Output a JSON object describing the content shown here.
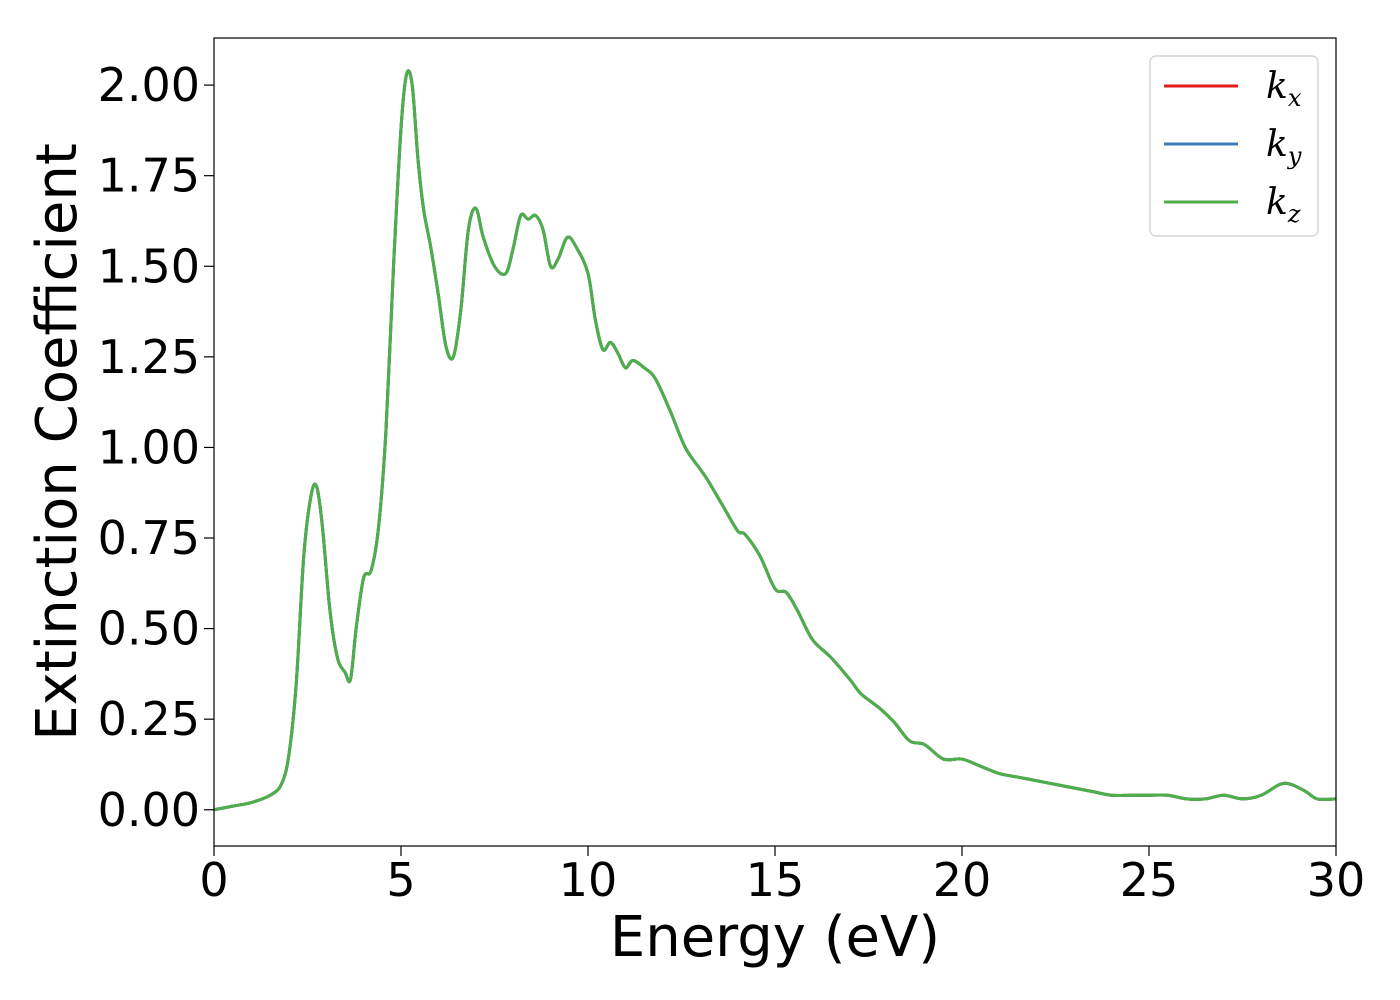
{
  "chart_data": {
    "type": "line",
    "title": "",
    "xlabel": "Energy (eV)",
    "ylabel": "Extinction Coefficient",
    "xlim": [
      0,
      30
    ],
    "ylim": [
      -0.1,
      2.13
    ],
    "xticks": [
      "0",
      "5",
      "10",
      "15",
      "20",
      "25",
      "30"
    ],
    "yticks": [
      "0.00",
      "0.25",
      "0.50",
      "0.75",
      "1.00",
      "1.25",
      "1.50",
      "1.75",
      "2.00"
    ],
    "grid": false,
    "legend": {
      "position": "top-right",
      "entries": [
        {
          "base": "k",
          "sub": "x",
          "color": "#e41a1c"
        },
        {
          "base": "k",
          "sub": "y",
          "color": "#377eb8"
        },
        {
          "base": "k",
          "sub": "z",
          "color": "#4daf4a"
        }
      ]
    },
    "x": [
      0,
      0.5,
      1.0,
      1.5,
      1.8,
      2.0,
      2.2,
      2.4,
      2.6,
      2.75,
      2.9,
      3.1,
      3.3,
      3.5,
      3.65,
      3.8,
      4.0,
      4.2,
      4.4,
      4.6,
      4.8,
      5.0,
      5.15,
      5.3,
      5.45,
      5.6,
      5.8,
      6.0,
      6.2,
      6.4,
      6.6,
      6.8,
      7.0,
      7.2,
      7.5,
      7.8,
      8.0,
      8.2,
      8.4,
      8.6,
      8.8,
      9.0,
      9.2,
      9.45,
      9.7,
      10.0,
      10.2,
      10.4,
      10.6,
      10.8,
      11.0,
      11.2,
      11.5,
      11.8,
      12.2,
      12.6,
      13.0,
      13.2,
      13.6,
      14.0,
      14.2,
      14.6,
      15.0,
      15.3,
      15.6,
      16.0,
      16.5,
      17.0,
      17.3,
      17.8,
      18.2,
      18.6,
      19.0,
      19.5,
      20.0,
      20.5,
      21.0,
      21.5,
      22.0,
      22.5,
      23.0,
      23.5,
      24.0,
      24.5,
      25.0,
      25.5,
      26.0,
      26.5,
      27.0,
      27.5,
      28.0,
      28.5,
      28.8,
      29.2,
      29.5,
      30.0
    ],
    "series": [
      {
        "values": [
          0.0,
          0.01,
          0.02,
          0.04,
          0.07,
          0.15,
          0.35,
          0.7,
          0.87,
          0.89,
          0.78,
          0.55,
          0.42,
          0.38,
          0.36,
          0.5,
          0.64,
          0.66,
          0.78,
          1.05,
          1.5,
          1.88,
          2.03,
          2.0,
          1.8,
          1.66,
          1.55,
          1.42,
          1.28,
          1.25,
          1.38,
          1.6,
          1.66,
          1.58,
          1.5,
          1.48,
          1.55,
          1.64,
          1.63,
          1.64,
          1.6,
          1.5,
          1.52,
          1.58,
          1.55,
          1.48,
          1.35,
          1.27,
          1.29,
          1.26,
          1.22,
          1.24,
          1.22,
          1.19,
          1.1,
          1.0,
          0.94,
          0.91,
          0.84,
          0.77,
          0.76,
          0.7,
          0.61,
          0.6,
          0.55,
          0.47,
          0.42,
          0.36,
          0.32,
          0.28,
          0.24,
          0.19,
          0.18,
          0.14,
          0.14,
          0.12,
          0.1,
          0.09,
          0.08,
          0.07,
          0.06,
          0.05,
          0.04,
          0.04,
          0.04,
          0.04,
          0.03,
          0.03,
          0.04,
          0.03,
          0.04,
          0.07,
          0.07,
          0.05,
          0.03,
          0.03
        ],
        "color": "#e41a1c"
      },
      {
        "values": [
          0.0,
          0.01,
          0.02,
          0.04,
          0.07,
          0.15,
          0.35,
          0.7,
          0.87,
          0.89,
          0.78,
          0.55,
          0.42,
          0.38,
          0.36,
          0.5,
          0.64,
          0.66,
          0.78,
          1.05,
          1.5,
          1.88,
          2.03,
          2.0,
          1.8,
          1.66,
          1.55,
          1.42,
          1.28,
          1.25,
          1.38,
          1.6,
          1.66,
          1.58,
          1.5,
          1.48,
          1.55,
          1.64,
          1.63,
          1.64,
          1.6,
          1.5,
          1.52,
          1.58,
          1.55,
          1.48,
          1.35,
          1.27,
          1.29,
          1.26,
          1.22,
          1.24,
          1.22,
          1.19,
          1.1,
          1.0,
          0.94,
          0.91,
          0.84,
          0.77,
          0.76,
          0.7,
          0.61,
          0.6,
          0.55,
          0.47,
          0.42,
          0.36,
          0.32,
          0.28,
          0.24,
          0.19,
          0.18,
          0.14,
          0.14,
          0.12,
          0.1,
          0.09,
          0.08,
          0.07,
          0.06,
          0.05,
          0.04,
          0.04,
          0.04,
          0.04,
          0.03,
          0.03,
          0.04,
          0.03,
          0.04,
          0.07,
          0.07,
          0.05,
          0.03,
          0.03
        ],
        "color": "#377eb8"
      },
      {
        "values": [
          0.0,
          0.01,
          0.02,
          0.04,
          0.07,
          0.15,
          0.35,
          0.7,
          0.87,
          0.89,
          0.78,
          0.55,
          0.42,
          0.38,
          0.36,
          0.5,
          0.64,
          0.66,
          0.78,
          1.05,
          1.5,
          1.88,
          2.03,
          2.0,
          1.8,
          1.66,
          1.55,
          1.42,
          1.28,
          1.25,
          1.38,
          1.6,
          1.66,
          1.58,
          1.5,
          1.48,
          1.55,
          1.64,
          1.63,
          1.64,
          1.6,
          1.5,
          1.52,
          1.58,
          1.55,
          1.48,
          1.35,
          1.27,
          1.29,
          1.26,
          1.22,
          1.24,
          1.22,
          1.19,
          1.1,
          1.0,
          0.94,
          0.91,
          0.84,
          0.77,
          0.76,
          0.7,
          0.61,
          0.6,
          0.55,
          0.47,
          0.42,
          0.36,
          0.32,
          0.28,
          0.24,
          0.19,
          0.18,
          0.14,
          0.14,
          0.12,
          0.1,
          0.09,
          0.08,
          0.07,
          0.06,
          0.05,
          0.04,
          0.04,
          0.04,
          0.04,
          0.03,
          0.03,
          0.04,
          0.03,
          0.04,
          0.07,
          0.07,
          0.05,
          0.03,
          0.03
        ],
        "color": "#4daf4a"
      }
    ]
  }
}
